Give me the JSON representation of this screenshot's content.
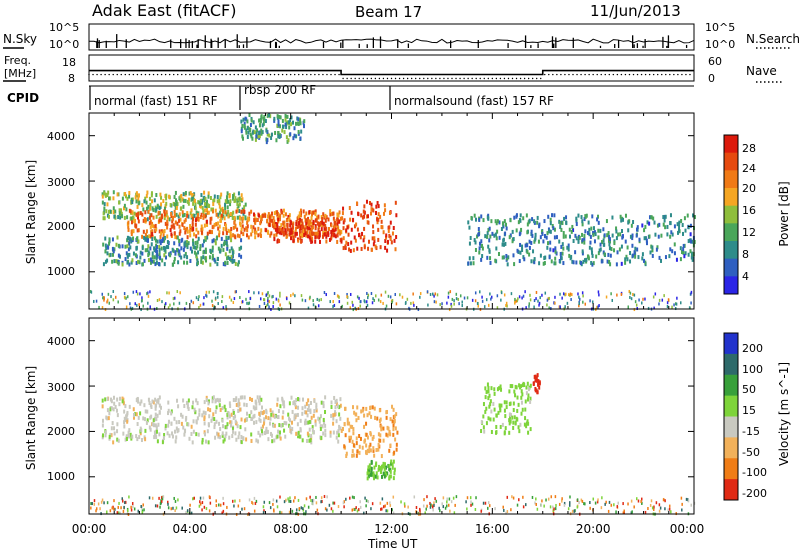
{
  "header": {
    "station": "Adak East (fitACF)",
    "beam": "Beam 17",
    "date": "11/Jun/2013"
  },
  "noise_panel": {
    "left_label": "N.Sky",
    "right_label": "N.Search",
    "left_ticks": [
      "10^5",
      "10^0"
    ],
    "right_ticks": [
      "10^5",
      "10^0"
    ]
  },
  "freq_panel": {
    "left_label_1": "Freq.",
    "left_label_2": "[MHz]",
    "left_ticks": [
      "18",
      "8"
    ],
    "right_label": "Nave",
    "right_ticks": [
      "60",
      "0"
    ]
  },
  "cpid_panel": {
    "label": "CPID",
    "modes": [
      "normal (fast) 151 RF",
      "rbsp 200 RF",
      "normalsound (fast) 157 RF"
    ]
  },
  "time_axis": {
    "label": "Time UT",
    "ticks": [
      "00:00",
      "04:00",
      "08:00",
      "12:00",
      "16:00",
      "20:00",
      "00:00"
    ]
  },
  "power_panel": {
    "ylabel": "Slant Range [km]",
    "yticks": [
      "4000",
      "3000",
      "2000",
      "1000"
    ],
    "colorbar_label": "Power [dB]",
    "colorbar_ticks": [
      "28",
      "24",
      "20",
      "16",
      "12",
      "8",
      "4"
    ],
    "colors": [
      "#2b25e6",
      "#2f5fc0",
      "#2e8c8a",
      "#4aa65a",
      "#8fbe3c",
      "#f5a623",
      "#f07a16",
      "#e64a0f",
      "#dc1a0c"
    ]
  },
  "velocity_panel": {
    "ylabel": "Slant Range [km]",
    "yticks": [
      "4000",
      "3000",
      "2000",
      "1000"
    ],
    "colorbar_label": "Velocity [m s^-1]",
    "colorbar_ticks": [
      "200",
      "100",
      "50",
      "15",
      "-15",
      "-50",
      "-100",
      "-200"
    ],
    "colors": [
      "#2233cc",
      "#2e6a6a",
      "#38a03a",
      "#7ed43a",
      "#c9c9c0",
      "#f2b15a",
      "#f07d16",
      "#e02a14"
    ]
  },
  "chart_data": {
    "type": "heatmap",
    "title": "Adak East (fitACF) Beam 17 11/Jun/2013",
    "xlabel": "Time UT",
    "ylabel": "Slant Range [km]",
    "xlim_hours": [
      0,
      24
    ],
    "ylim_km": [
      180,
      4500
    ],
    "cpid_segments": [
      {
        "label": "normal (fast) 151 RF",
        "start_h": 0,
        "end_h": 6
      },
      {
        "label": "rbsp 200 RF",
        "start_h": 6,
        "end_h": 12
      },
      {
        "label": "normalsound (fast) 157 RF",
        "start_h": 12,
        "end_h": 24
      }
    ],
    "freq_steps_mhz": [
      {
        "start_h": 0,
        "end_h": 10,
        "freq": 12.0
      },
      {
        "start_h": 10,
        "end_h": 18,
        "freq": 10.5
      },
      {
        "start_h": 18,
        "end_h": 24,
        "freq": 12.0
      }
    ],
    "power_range_db": [
      0,
      30
    ],
    "velocity_range_ms": [
      -200,
      200
    ],
    "echo_bands_power": [
      {
        "start_h": 0.5,
        "end_h": 6.2,
        "range_km": [
          2200,
          2800
        ],
        "power_db": 14
      },
      {
        "start_h": 1.5,
        "end_h": 10,
        "range_km": [
          1800,
          2400
        ],
        "power_db": 22
      },
      {
        "start_h": 7.2,
        "end_h": 10,
        "range_km": [
          1700,
          2200
        ],
        "power_db": 27
      },
      {
        "start_h": 10,
        "end_h": 12.2,
        "range_km": [
          1500,
          2600
        ],
        "power_db": 25
      },
      {
        "start_h": 0.5,
        "end_h": 6,
        "range_km": [
          1200,
          1800
        ],
        "power_db": 9
      },
      {
        "start_h": 15,
        "end_h": 24,
        "range_km": [
          1200,
          2300
        ],
        "power_db": 8
      },
      {
        "start_h": 6,
        "end_h": 8.5,
        "range_km": [
          3900,
          4500
        ],
        "power_db": 10
      }
    ],
    "echo_bands_velocity": [
      {
        "start_h": 0.5,
        "end_h": 10,
        "range_km": [
          1800,
          2800
        ],
        "velocity_ms": 0
      },
      {
        "start_h": 10,
        "end_h": 12.2,
        "range_km": [
          1500,
          2600
        ],
        "velocity_ms": -40
      },
      {
        "start_h": 11,
        "end_h": 12.1,
        "range_km": [
          1000,
          1400
        ],
        "velocity_ms": 40
      },
      {
        "start_h": 15.5,
        "end_h": 17.5,
        "range_km": [
          2000,
          3100
        ],
        "velocity_ms": 30
      },
      {
        "start_h": 17.6,
        "end_h": 17.9,
        "range_km": [
          2900,
          3300
        ],
        "velocity_ms": -200
      }
    ]
  }
}
